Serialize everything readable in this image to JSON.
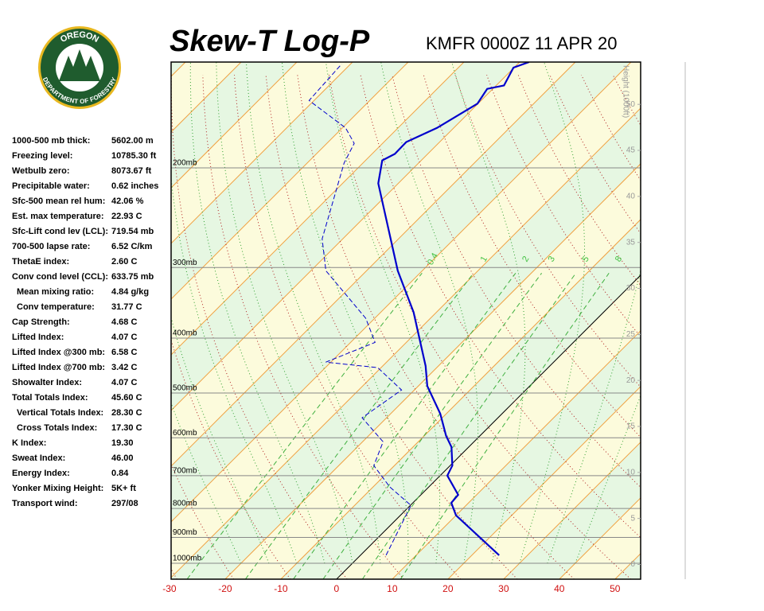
{
  "logo": {
    "top": "OREGON",
    "bottom": "DEPARTMENT OF FORESTRY"
  },
  "indices": [
    {
      "label": "1000-500 mb thick:",
      "value": "5602.00 m"
    },
    {
      "label": "Freezing level:",
      "value": "10785.30 ft"
    },
    {
      "label": "Wetbulb zero:",
      "value": "8073.67 ft"
    },
    {
      "label": "Precipitable water:",
      "value": "0.62 inches"
    },
    {
      "label": "Sfc-500 mean rel hum:",
      "value": "42.06 %"
    },
    {
      "label": "Est. max temperature:",
      "value": "22.93 C"
    },
    {
      "label": "Sfc-Lift cond lev (LCL):",
      "value": "719.54 mb"
    },
    {
      "label": "700-500 lapse rate:",
      "value": "6.52 C/km"
    },
    {
      "label": "ThetaE index:",
      "value": "2.60 C"
    },
    {
      "label": "Conv cond level (CCL):",
      "value": "633.75 mb"
    },
    {
      "label": "Mean mixing ratio:",
      "value": "4.84 g/kg"
    },
    {
      "label": "Conv temperature:",
      "value": "31.77 C"
    },
    {
      "label": "Cap Strength:",
      "value": "4.68 C"
    },
    {
      "label": "Lifted Index:",
      "value": "4.07 C"
    },
    {
      "label": "Lifted Index @300 mb:",
      "value": "6.58 C"
    },
    {
      "label": "Lifted Index @700 mb:",
      "value": "3.42 C"
    },
    {
      "label": "Showalter Index:",
      "value": "4.07 C"
    },
    {
      "label": "Total Totals Index:",
      "value": "45.60 C"
    },
    {
      "label": "Vertical Totals Index:",
      "value": "28.30 C"
    },
    {
      "label": "Cross Totals Index:",
      "value": "17.30 C"
    },
    {
      "label": "K Index:",
      "value": "19.30"
    },
    {
      "label": "Sweat Index:",
      "value": "46.00"
    },
    {
      "label": "Energy Index:",
      "value": "0.84"
    },
    {
      "label": "Yonker Mixing Height:",
      "value": "5K+ ft"
    },
    {
      "label": "Transport wind:",
      "value": "297/08"
    }
  ],
  "chart_data": {
    "type": "skewt",
    "title": "Skew-T Log-P",
    "subtitle": "KMFR 0000Z 11 APR 20",
    "xlim": [
      -29.7,
      54.6
    ],
    "xticks": [
      -30,
      -20,
      -10,
      0,
      10,
      20,
      30,
      40,
      50
    ],
    "ylim": [
      1067,
      130
    ],
    "log_y": true,
    "yticks": [
      {
        "value": 1000,
        "label": "1000mb"
      },
      {
        "value": 900,
        "label": "900mb"
      },
      {
        "value": 800,
        "label": "800mb"
      },
      {
        "value": 700,
        "label": "700mb"
      },
      {
        "value": 600,
        "label": "600mb"
      },
      {
        "value": 500,
        "label": "500mb"
      },
      {
        "value": 400,
        "label": "400mb"
      },
      {
        "value": 300,
        "label": "300mb"
      },
      {
        "value": 200,
        "label": "200mb"
      }
    ],
    "y2label": "Height (1000ft)",
    "y2lim": [
      -1.6,
      54.6
    ],
    "y2ticks": [
      0,
      5,
      10,
      15,
      20,
      25,
      30,
      35,
      40,
      45,
      50
    ],
    "mixing_ratios": [
      0.4,
      1,
      2,
      3,
      5,
      8
    ],
    "series": [
      {
        "color": "#0000cc",
        "line_style": "solid",
        "pressure": [
          968,
          823,
          782,
          757,
          700,
          672,
          623,
          595,
          544,
          486,
          448,
          360,
          304,
          213,
          194,
          189,
          180,
          170,
          154,
          145,
          143,
          133,
          130
        ],
        "values": [
          24.9,
          10.0,
          6.9,
          6.7,
          1.3,
          0.4,
          -3.1,
          -6.1,
          -11.1,
          -18.4,
          -22.3,
          -34.1,
          -44.4,
          -63.6,
          -67.0,
          -65.9,
          -66.0,
          -63.0,
          -60.1,
          -61.0,
          -58.6,
          -60.1,
          -58.3
        ]
      },
      {
        "color": "#0000cc",
        "line_style": "dashed",
        "pressure": [
          968,
          790,
          733,
          672,
          610,
          553,
          494,
          451,
          441,
          407,
          369,
          304,
          267,
          196,
          181,
          170,
          152,
          131
        ],
        "values": [
          4.6,
          0.1,
          -7.0,
          -13.7,
          -16.3,
          -24.4,
          -22.3,
          -30.6,
          -40.9,
          -35.6,
          -41.6,
          -57.3,
          -63.7,
          -73.4,
          -75.1,
          -79.4,
          -90.9,
          -91.6
        ]
      }
    ]
  }
}
